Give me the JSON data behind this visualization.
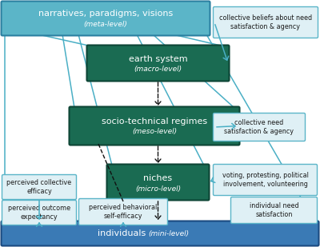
{
  "bg_color": "#ffffff",
  "top_bar_color": "#5bb5c8",
  "top_bar_edge_color": "#2a7fa0",
  "bottom_bar_color": "#3a7ab5",
  "bottom_bar_edge_color": "#1a4a80",
  "green_box_color": "#1a6b52",
  "green_box_edge_color": "#0d4535",
  "side_box_color": "#dff0f5",
  "side_box_edge_color": "#5bb5c8",
  "top_bar_text": "narratives, paradigms, visions",
  "top_bar_subtext": "(meta-level)",
  "bottom_bar_text": "individuals",
  "bottom_bar_subtext": "(mini-level)",
  "earth_text": "earth system",
  "earth_subtext": "(macro-level)",
  "regime_text": "socio-technical regimes",
  "regime_subtext": "(meso-level)",
  "niche_text": "niches",
  "niche_subtext": "(micro-level)",
  "box_collective_beliefs": "collective beliefs about need\nsatisfaction & agency",
  "box_collective_need": "collective need\nsatisfaction & agency",
  "box_voting": "voting, protesting, political\ninvolvement, volunteering",
  "box_individual_need": "individual need\nsatisfaction",
  "box_perceived_collective": "perceived collective\nefficacy",
  "box_perceived_outcome": "perceived outcome\nexpectancy",
  "box_perceived_behavioral": "perceived behavioral\nself-efficacy",
  "text_color_white": "#ffffff",
  "text_color_dark": "#1a1a1a",
  "arrow_color_teal": "#4aafc5",
  "arrow_color_dark": "#111111"
}
